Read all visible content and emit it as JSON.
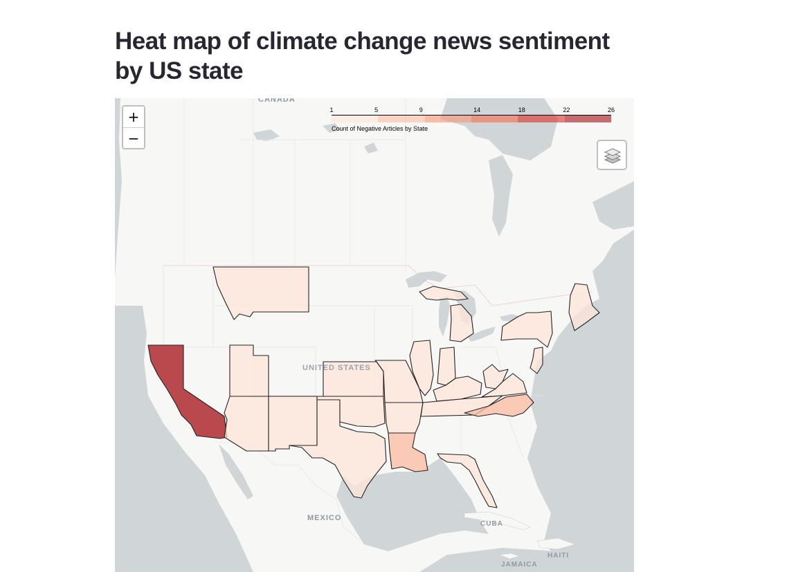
{
  "page": {
    "title": "Heat map of climate change news sentiment by US state"
  },
  "map": {
    "labels": {
      "canada": "CANADA",
      "united_states": "UNITED STATES",
      "mexico": "MEXICO",
      "cuba": "CUBA",
      "haiti": "HAITI",
      "jamaica": "JAMAICA"
    },
    "zoom_in": "+",
    "zoom_out": "−",
    "layer_control_icon": "layers-icon"
  },
  "legend": {
    "caption": "Count of Negative Articles by State",
    "ticks": [
      "1",
      "5",
      "9",
      "14",
      "18",
      "22",
      "26"
    ],
    "colors": [
      "#fee5d9",
      "#fcbba1",
      "#fc9272",
      "#fb6a4a",
      "#de2d26",
      "#a50f15"
    ]
  },
  "colors": {
    "water": "#d0d5d8",
    "land": "#f7f7f6",
    "state_border": "#222222",
    "fill_opacity": 0.6
  },
  "state_counts": [
    {
      "state": "California",
      "count": 26
    },
    {
      "state": "North Carolina",
      "count": 6
    },
    {
      "state": "Louisiana",
      "count": 5
    },
    {
      "state": "New York",
      "count": 4
    },
    {
      "state": "Florida",
      "count": 4
    },
    {
      "state": "Montana",
      "count": 2
    },
    {
      "state": "Utah",
      "count": 2
    },
    {
      "state": "Arizona",
      "count": 2
    },
    {
      "state": "New Mexico",
      "count": 2
    },
    {
      "state": "Texas",
      "count": 2
    },
    {
      "state": "Kansas",
      "count": 2
    },
    {
      "state": "Oklahoma",
      "count": 2
    },
    {
      "state": "Missouri",
      "count": 1
    },
    {
      "state": "Arkansas",
      "count": 1
    },
    {
      "state": "Illinois",
      "count": 1
    },
    {
      "state": "Indiana",
      "count": 1
    },
    {
      "state": "Kentucky",
      "count": 1
    },
    {
      "state": "Tennessee",
      "count": 1
    },
    {
      "state": "Michigan",
      "count": 1
    },
    {
      "state": "West Virginia",
      "count": 1
    },
    {
      "state": "Virginia",
      "count": 1
    },
    {
      "state": "New Jersey",
      "count": 1
    },
    {
      "state": "Maine",
      "count": 1
    }
  ]
}
